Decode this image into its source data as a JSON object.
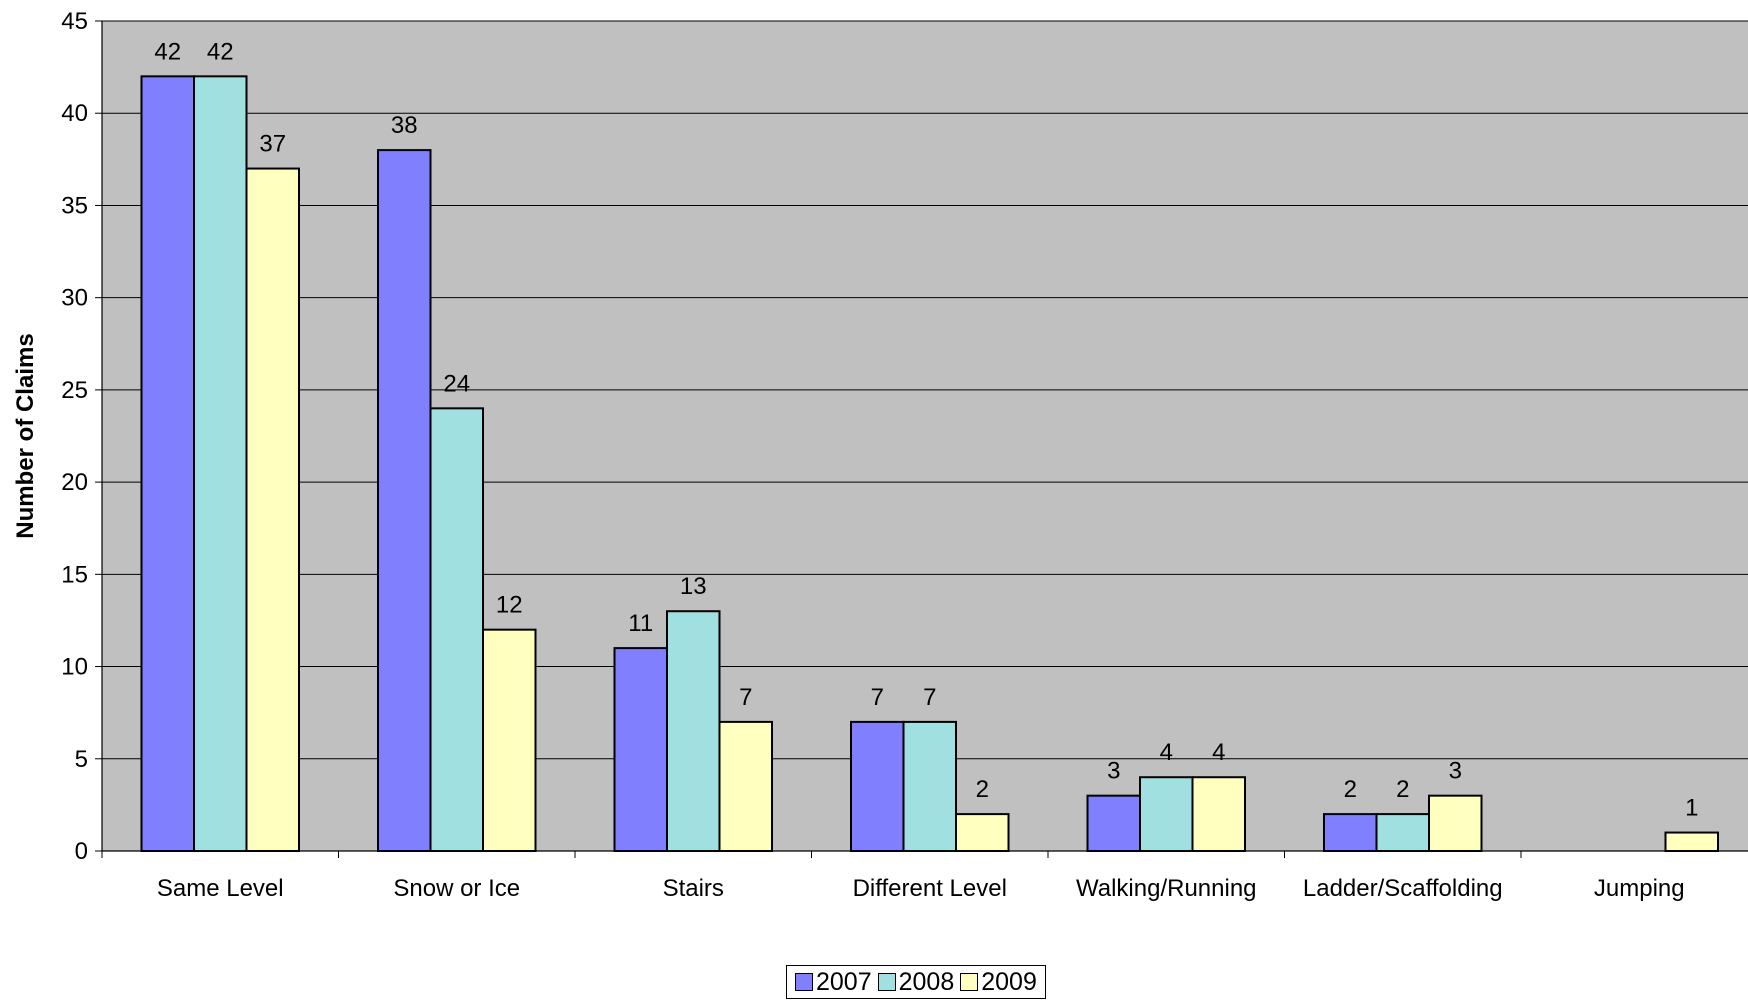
{
  "chart_data": {
    "type": "bar",
    "title": "",
    "xlabel": "",
    "ylabel": "Number of Claims",
    "ylim": [
      0,
      45
    ],
    "yticks": [
      0,
      5,
      10,
      15,
      20,
      25,
      30,
      35,
      40,
      45
    ],
    "grid": true,
    "legend_position": "bottom",
    "categories": [
      "Same Level",
      "Snow or Ice",
      "Stairs",
      "Different Level",
      "Walking/Running",
      "Ladder/Scaffolding",
      "Jumping"
    ],
    "series": [
      {
        "name": "2007",
        "color": "#8080ff",
        "values": [
          42,
          38,
          11,
          7,
          3,
          2,
          null
        ]
      },
      {
        "name": "2008",
        "color": "#a0e0e0",
        "values": [
          42,
          24,
          13,
          7,
          4,
          2,
          null
        ]
      },
      {
        "name": "2009",
        "color": "#ffffc0",
        "values": [
          37,
          12,
          7,
          2,
          4,
          3,
          1
        ]
      }
    ],
    "plot_background": "#c0c0c0"
  }
}
